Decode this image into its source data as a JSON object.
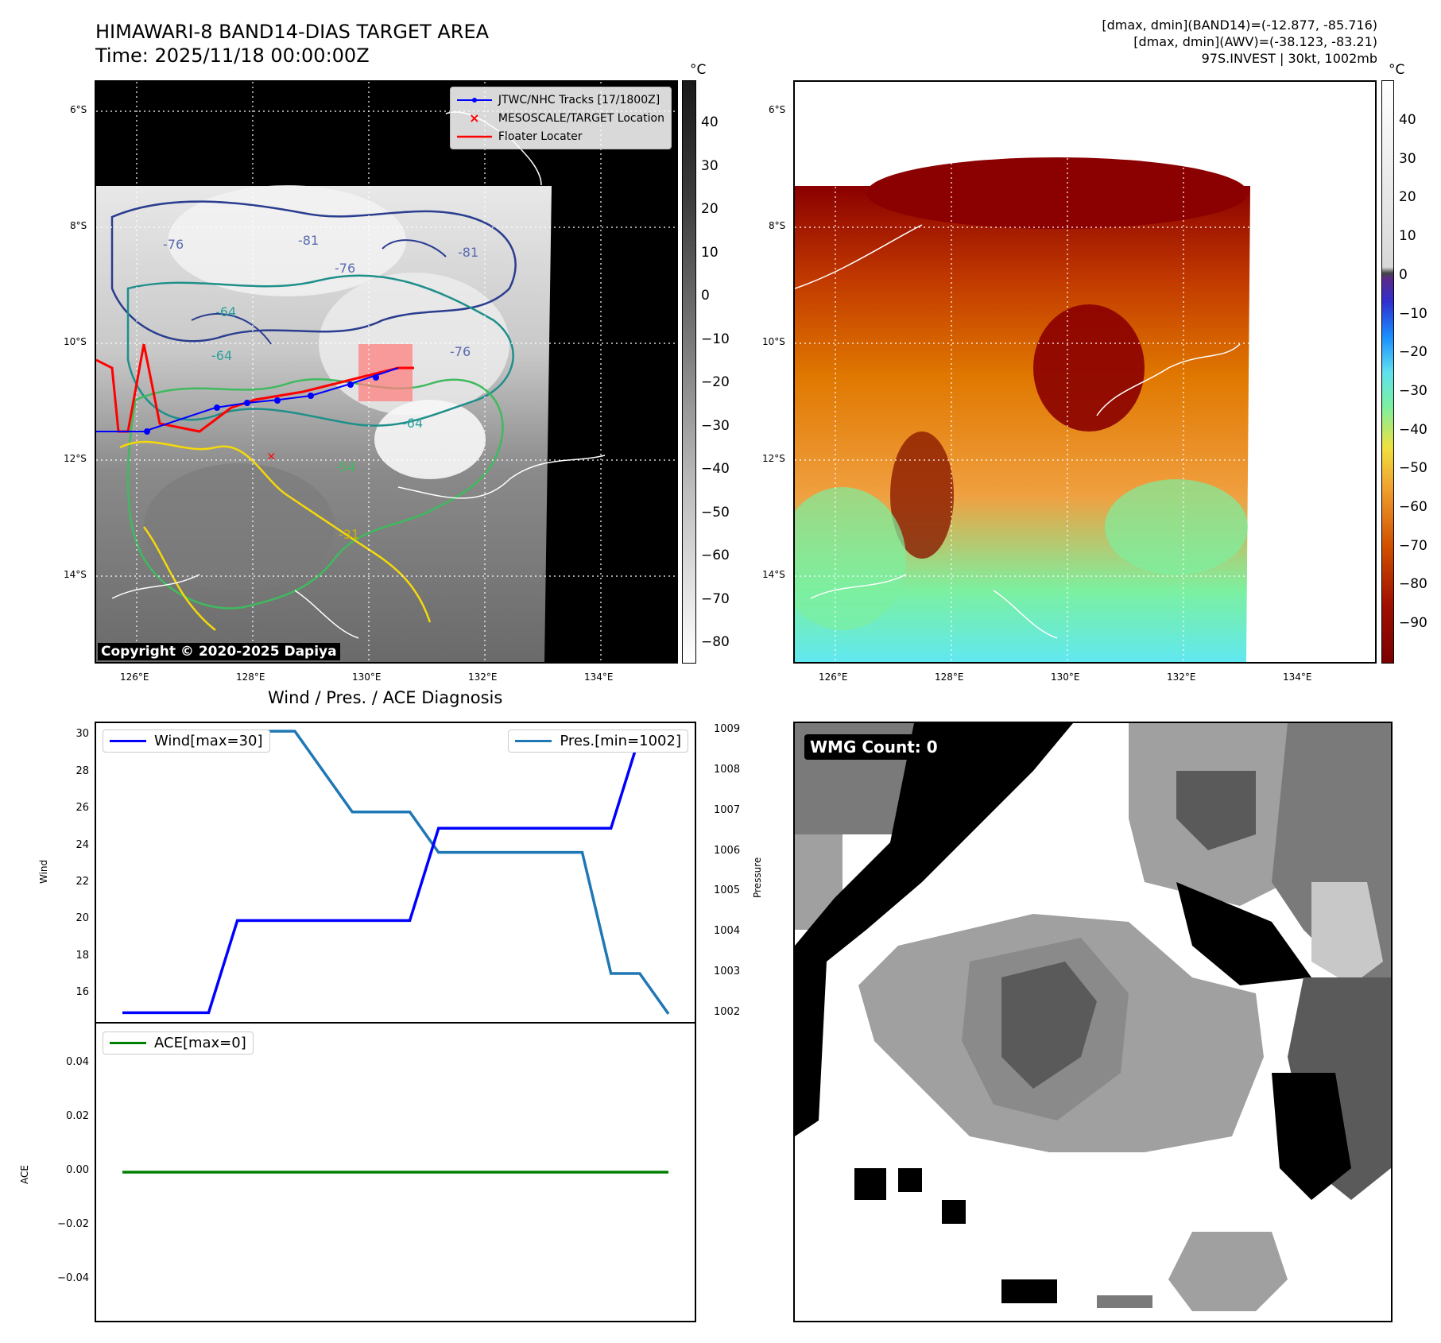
{
  "header": {
    "title": "HIMAWARI-8 BAND14-DIAS TARGET AREA",
    "time": "Time: 2025/11/18 00:00:00Z",
    "info1": "[dmax, dmin](BAND14)=(-12.877, -85.716)",
    "info2": "[dmax, dmin](AWV)=(-38.123, -83.21)",
    "info3": "97S.INVEST | 30kt, 1002mb"
  },
  "map": {
    "lat_labels": [
      "6°S",
      "8°S",
      "10°S",
      "12°S",
      "14°S"
    ],
    "lon_labels": [
      "126°E",
      "128°E",
      "130°E",
      "132°E",
      "134°E"
    ],
    "contour_labels": [
      "-76",
      "-81",
      "-81",
      "-76",
      "-64",
      "-64",
      "-76",
      "-64",
      "-54",
      "-31"
    ],
    "legend": [
      {
        "label": "JTWC/NHC Tracks [17/1800Z]",
        "color": "#0000ff"
      },
      {
        "label": "MESOSCALE/TARGET Location",
        "color": "#ff0000"
      },
      {
        "label": "Floater Locater",
        "color": "#ff0000"
      }
    ],
    "copyright": "Copyright © 2020-2025 Dapiya",
    "unit": "°C"
  },
  "colorbar_gray": {
    "ticks": [
      "40",
      "30",
      "20",
      "10",
      "0",
      "−10",
      "−20",
      "−30",
      "−40",
      "−50",
      "−60",
      "−70",
      "−80"
    ],
    "unit": "°C"
  },
  "colorbar_color": {
    "ticks": [
      "40",
      "30",
      "20",
      "10",
      "0",
      "−10",
      "−20",
      "−30",
      "−40",
      "−50",
      "−60",
      "−70",
      "−80",
      "−90"
    ],
    "unit": "°C"
  },
  "diagnosis": {
    "title": "Wind / Pres. / ACE Diagnosis",
    "wind_label": "Wind[max=30]",
    "pres_label": "Pres.[min=1002]",
    "ace_label": "ACE[max=0]",
    "wind_axis": "Wind",
    "pres_axis": "Pressure",
    "ace_axis": "ACE",
    "wind_ticks": [
      "30",
      "28",
      "26",
      "24",
      "22",
      "20",
      "18",
      "16"
    ],
    "pres_ticks": [
      "1009",
      "1008",
      "1007",
      "1006",
      "1005",
      "1004",
      "1003",
      "1002"
    ],
    "ace_ticks": [
      "0.04",
      "0.02",
      "0.00",
      "−0.02",
      "−0.04"
    ]
  },
  "wmg": {
    "label": "WMG Count: 0"
  },
  "chart_data": [
    {
      "type": "line",
      "title": "Wind / Pres. / ACE Diagnosis",
      "x": [
        0,
        1,
        2,
        3,
        4,
        5,
        6,
        7,
        8,
        9,
        10,
        11,
        12,
        13,
        14,
        15,
        16,
        17,
        18,
        19
      ],
      "series": [
        {
          "name": "Wind[max=30]",
          "axis": "left",
          "color": "#0000ff",
          "values": [
            15,
            15,
            15,
            15,
            20,
            20,
            20,
            20,
            20,
            20,
            20,
            25,
            25,
            25,
            25,
            25,
            25,
            25,
            30,
            30
          ]
        },
        {
          "name": "Pres.[min=1002]",
          "axis": "right",
          "color": "#1f77b4",
          "values": [
            1009,
            1009,
            1009,
            1009,
            1009,
            1009,
            1009,
            1008,
            1007,
            1007,
            1007,
            1006,
            1006,
            1006,
            1006,
            1006,
            1006,
            1003,
            1003,
            1002
          ]
        }
      ],
      "ylabel": "Wind",
      "ylabel_right": "Pressure",
      "ylim": [
        14.5,
        30.7
      ],
      "ylim_right": [
        1001.8,
        1009.2
      ]
    },
    {
      "type": "line",
      "x": [
        0,
        1,
        2,
        3,
        4,
        5,
        6,
        7,
        8,
        9,
        10,
        11,
        12,
        13,
        14,
        15,
        16,
        17,
        18,
        19
      ],
      "series": [
        {
          "name": "ACE[max=0]",
          "color": "#008000",
          "values": [
            0,
            0,
            0,
            0,
            0,
            0,
            0,
            0,
            0,
            0,
            0,
            0,
            0,
            0,
            0,
            0,
            0,
            0,
            0,
            0
          ]
        }
      ],
      "ylabel": "ACE",
      "ylim": [
        -0.055,
        0.055
      ]
    }
  ]
}
